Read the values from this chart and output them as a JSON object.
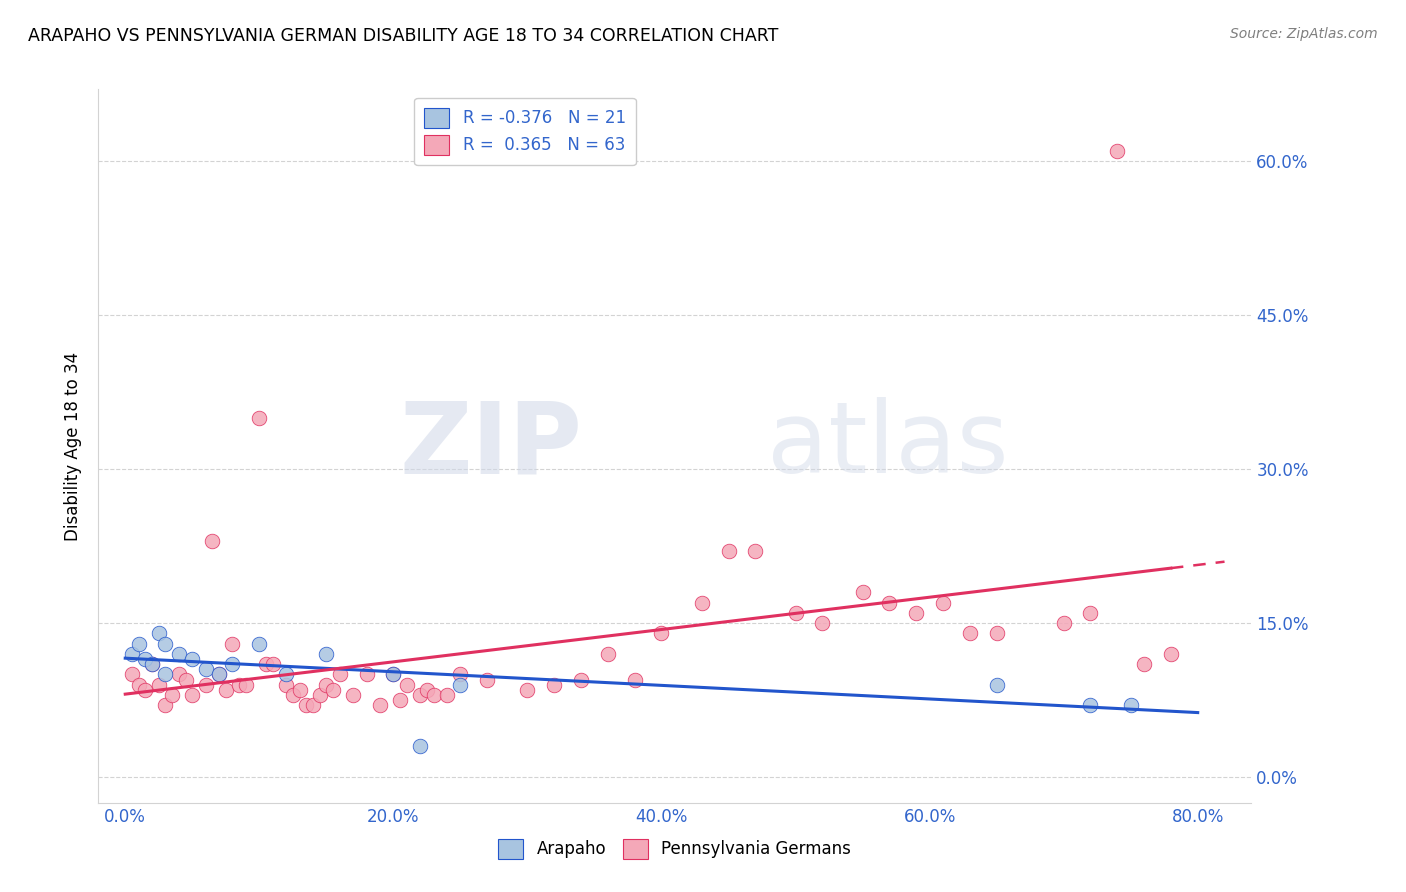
{
  "title": "ARAPAHO VS PENNSYLVANIA GERMAN DISABILITY AGE 18 TO 34 CORRELATION CHART",
  "source": "Source: ZipAtlas.com",
  "ylabel": "Disability Age 18 to 34",
  "xlim": [
    -0.02,
    0.84
  ],
  "ylim": [
    -0.025,
    0.67
  ],
  "xlabel_tick_vals": [
    0.0,
    0.2,
    0.4,
    0.6,
    0.8
  ],
  "xlabel_ticks": [
    "0.0%",
    "20.0%",
    "40.0%",
    "60.0%",
    "80.0%"
  ],
  "ylabel_tick_vals": [
    0.0,
    0.15,
    0.3,
    0.45,
    0.6
  ],
  "ylabel_ticks": [
    "0.0%",
    "15.0%",
    "30.0%",
    "45.0%",
    "60.0%"
  ],
  "arapaho_color": "#a8c4e0",
  "penn_german_color": "#f4a8b8",
  "arapaho_line_color": "#2255cc",
  "penn_german_line_color": "#e03060",
  "watermark_zip": "ZIP",
  "watermark_atlas": "atlas",
  "legend_R_arapaho": "-0.376",
  "legend_N_arapaho": "21",
  "legend_R_penn": "0.365",
  "legend_N_penn": "63",
  "arapaho_x": [
    0.005,
    0.01,
    0.015,
    0.02,
    0.025,
    0.03,
    0.03,
    0.04,
    0.05,
    0.06,
    0.07,
    0.08,
    0.1,
    0.12,
    0.15,
    0.2,
    0.22,
    0.25,
    0.65,
    0.72,
    0.75
  ],
  "arapaho_y": [
    0.12,
    0.13,
    0.115,
    0.11,
    0.14,
    0.1,
    0.13,
    0.12,
    0.115,
    0.105,
    0.1,
    0.11,
    0.13,
    0.1,
    0.12,
    0.1,
    0.03,
    0.09,
    0.09,
    0.07,
    0.07
  ],
  "penn_german_x": [
    0.005,
    0.01,
    0.015,
    0.02,
    0.025,
    0.03,
    0.035,
    0.04,
    0.045,
    0.05,
    0.06,
    0.065,
    0.07,
    0.075,
    0.08,
    0.085,
    0.09,
    0.1,
    0.105,
    0.11,
    0.12,
    0.125,
    0.13,
    0.135,
    0.14,
    0.145,
    0.15,
    0.155,
    0.16,
    0.17,
    0.18,
    0.19,
    0.2,
    0.205,
    0.21,
    0.22,
    0.225,
    0.23,
    0.24,
    0.25,
    0.27,
    0.3,
    0.32,
    0.34,
    0.36,
    0.38,
    0.4,
    0.43,
    0.45,
    0.47,
    0.5,
    0.52,
    0.55,
    0.57,
    0.59,
    0.61,
    0.63,
    0.65,
    0.7,
    0.72,
    0.74,
    0.76,
    0.78
  ],
  "penn_german_y": [
    0.1,
    0.09,
    0.085,
    0.11,
    0.09,
    0.07,
    0.08,
    0.1,
    0.095,
    0.08,
    0.09,
    0.23,
    0.1,
    0.085,
    0.13,
    0.09,
    0.09,
    0.35,
    0.11,
    0.11,
    0.09,
    0.08,
    0.085,
    0.07,
    0.07,
    0.08,
    0.09,
    0.085,
    0.1,
    0.08,
    0.1,
    0.07,
    0.1,
    0.075,
    0.09,
    0.08,
    0.085,
    0.08,
    0.08,
    0.1,
    0.095,
    0.085,
    0.09,
    0.095,
    0.12,
    0.095,
    0.14,
    0.17,
    0.22,
    0.22,
    0.16,
    0.15,
    0.18,
    0.17,
    0.16,
    0.17,
    0.14,
    0.14,
    0.15,
    0.16,
    0.61,
    0.11,
    0.12
  ]
}
